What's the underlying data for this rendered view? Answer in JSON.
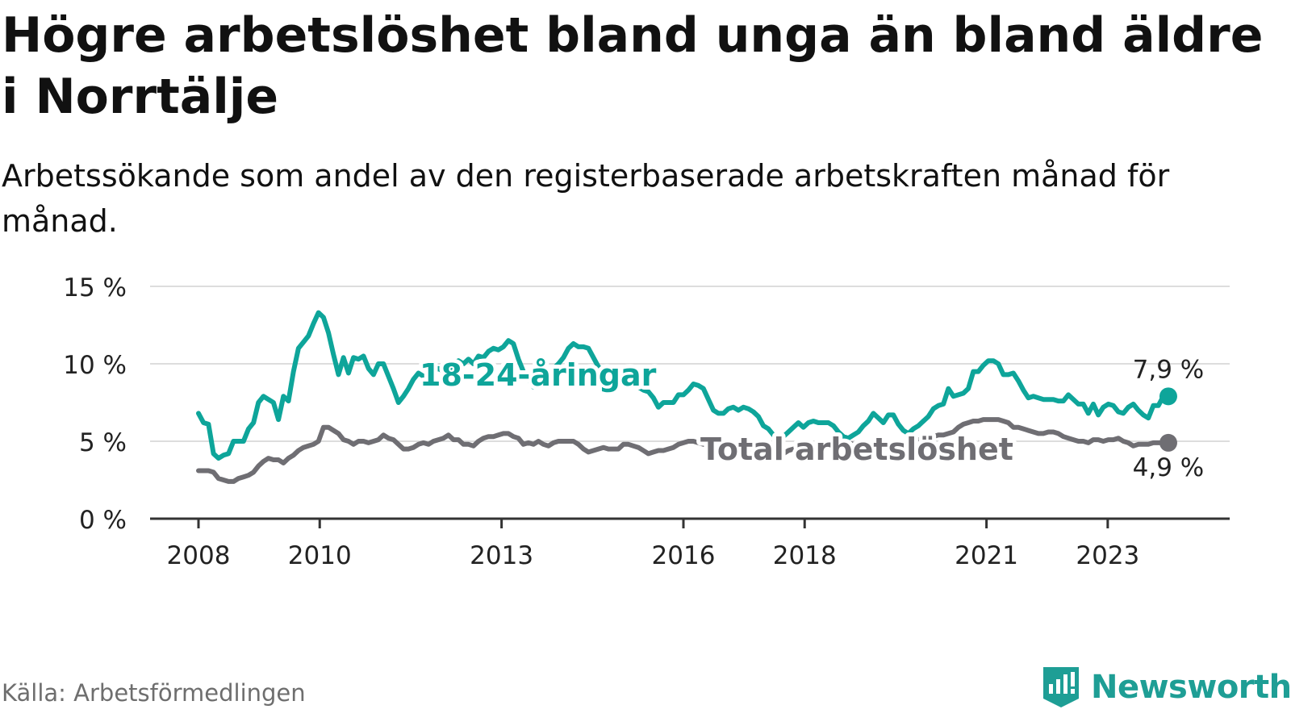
{
  "header": {
    "title": "Högre arbetslöshet bland unga än bland äldre i Norrtälje",
    "subtitle": "Arbetssökande som andel av den registerbaserade arbetskraften månad för månad."
  },
  "footer": {
    "source": "Källa: Arbetsförmedlingen",
    "brand": "Newsworthy"
  },
  "colors": {
    "youth": "#0ea59a",
    "total": "#6f6e73",
    "grid": "#dddddd",
    "axis": "#333333",
    "brand": "#1e9e95"
  },
  "chart_data": {
    "type": "line",
    "title": "Högre arbetslöshet bland unga än bland äldre i Norrtälje",
    "xlabel": "",
    "ylabel": "",
    "ylim": [
      0,
      15
    ],
    "yticks": [
      0,
      5,
      10,
      15
    ],
    "ytick_labels": [
      "0 %",
      "5 %",
      "10 %",
      "15 %"
    ],
    "xlim": [
      2008,
      2024.2
    ],
    "xticks": [
      2008,
      2010,
      2013,
      2016,
      2018,
      2021,
      2023
    ],
    "xtick_labels": [
      "2008",
      "2010",
      "2013",
      "2016",
      "2018",
      "2021",
      "2023"
    ],
    "grid": true,
    "series": [
      {
        "name": "18-24-åringar",
        "label": "18-24-åringar",
        "end_label": "7,9 %",
        "values": [
          6.8,
          6.2,
          6.1,
          4.2,
          3.9,
          4.1,
          4.2,
          5.0,
          5.0,
          5.0,
          5.8,
          6.2,
          7.5,
          7.9,
          7.7,
          7.5,
          6.4,
          7.9,
          7.6,
          9.5,
          11.0,
          11.4,
          11.8,
          12.6,
          13.3,
          13.0,
          12.0,
          10.6,
          9.3,
          10.4,
          9.4,
          10.4,
          10.3,
          10.5,
          9.7,
          9.3,
          10.0,
          10.0,
          9.2,
          8.4,
          7.5,
          7.9,
          8.4,
          9.0,
          9.4,
          9.2,
          9.2,
          9.6,
          9.7,
          9.5,
          9.6,
          10.0,
          10.2,
          10.0,
          10.3,
          10.0,
          10.5,
          10.4,
          10.8,
          11.0,
          10.9,
          11.1,
          11.5,
          11.3,
          10.3,
          9.5,
          9.0,
          8.5,
          8.6,
          8.9,
          9.4,
          9.7,
          10.0,
          10.4,
          11.0,
          11.3,
          11.1,
          11.1,
          11.0,
          10.4,
          9.8,
          9.5,
          9.3,
          9.2,
          9.1,
          9.0,
          8.9,
          8.6,
          8.5,
          8.3,
          8.2,
          7.8,
          7.2,
          7.5,
          7.5,
          7.5,
          8.0,
          8.0,
          8.3,
          8.7,
          8.6,
          8.4,
          7.7,
          7.0,
          6.8,
          6.8,
          7.1,
          7.2,
          7.0,
          7.2,
          7.1,
          6.9,
          6.6,
          6.0,
          5.8,
          5.4,
          5.2,
          5.3,
          5.6,
          5.9,
          6.2,
          5.9,
          6.2,
          6.3,
          6.2,
          6.2,
          6.2,
          6.0,
          5.6,
          5.3,
          5.2,
          5.4,
          5.6,
          6.0,
          6.3,
          6.8,
          6.5,
          6.2,
          6.7,
          6.7,
          6.1,
          5.7,
          5.5,
          5.8,
          6.0,
          6.3,
          6.6,
          7.1,
          7.3,
          7.4,
          8.4,
          7.9,
          8.0,
          8.1,
          8.4,
          9.5,
          9.5,
          9.9,
          10.2,
          10.2,
          10.0,
          9.3,
          9.3,
          9.4,
          8.9,
          8.3,
          7.8,
          7.9,
          7.8,
          7.7,
          7.7,
          7.7,
          7.6,
          7.6,
          8.0,
          7.7,
          7.4,
          7.4,
          6.8,
          7.4,
          6.7,
          7.2,
          7.4,
          7.3,
          6.9,
          6.8,
          7.2,
          7.4,
          7.0,
          6.7,
          6.5,
          7.3,
          7.3,
          7.9,
          7.9
        ]
      },
      {
        "name": "Total arbetslöshet",
        "label": "Total arbetslöshet",
        "end_label": "4,9 %",
        "values": [
          3.1,
          3.1,
          3.1,
          3.0,
          2.6,
          2.5,
          2.4,
          2.4,
          2.6,
          2.7,
          2.8,
          3.0,
          3.4,
          3.7,
          3.9,
          3.8,
          3.8,
          3.6,
          3.9,
          4.1,
          4.4,
          4.6,
          4.7,
          4.8,
          5.0,
          5.9,
          5.9,
          5.7,
          5.5,
          5.1,
          5.0,
          4.8,
          5.0,
          5.0,
          4.9,
          5.0,
          5.1,
          5.4,
          5.2,
          5.1,
          4.8,
          4.5,
          4.5,
          4.6,
          4.8,
          4.9,
          4.8,
          5.0,
          5.1,
          5.2,
          5.4,
          5.1,
          5.1,
          4.8,
          4.8,
          4.7,
          5.0,
          5.2,
          5.3,
          5.3,
          5.4,
          5.5,
          5.5,
          5.3,
          5.2,
          4.8,
          4.9,
          4.8,
          5.0,
          4.8,
          4.7,
          4.9,
          5.0,
          5.0,
          5.0,
          5.0,
          4.8,
          4.5,
          4.3,
          4.4,
          4.5,
          4.6,
          4.5,
          4.5,
          4.5,
          4.8,
          4.8,
          4.7,
          4.6,
          4.4,
          4.2,
          4.3,
          4.4,
          4.4,
          4.5,
          4.6,
          4.8,
          4.9,
          5.0,
          5.0,
          4.9,
          4.8,
          4.7,
          4.6,
          4.6,
          4.6,
          4.7,
          4.7,
          4.6,
          4.6,
          4.5,
          4.4,
          4.2,
          4.1,
          4.0,
          3.9,
          4.0,
          4.2,
          4.4,
          4.5,
          4.5,
          4.6,
          4.6,
          4.7,
          4.8,
          4.9,
          5.0,
          5.0,
          5.1,
          5.0,
          4.9,
          4.8,
          4.7,
          4.7,
          4.6,
          4.6,
          4.5,
          4.5,
          4.6,
          4.6,
          4.8,
          4.9,
          5.0,
          5.1,
          5.1,
          5.2,
          5.2,
          5.3,
          5.4,
          5.4,
          5.5,
          5.6,
          5.9,
          6.1,
          6.2,
          6.3,
          6.3,
          6.4,
          6.4,
          6.4,
          6.4,
          6.3,
          6.2,
          5.9,
          5.9,
          5.8,
          5.7,
          5.6,
          5.5,
          5.5,
          5.6,
          5.6,
          5.5,
          5.3,
          5.2,
          5.1,
          5.0,
          5.0,
          4.9,
          5.1,
          5.1,
          5.0,
          5.1,
          5.1,
          5.2,
          5.0,
          4.9,
          4.7,
          4.8,
          4.8,
          4.8,
          4.9,
          4.9,
          4.9,
          4.9
        ]
      }
    ]
  }
}
